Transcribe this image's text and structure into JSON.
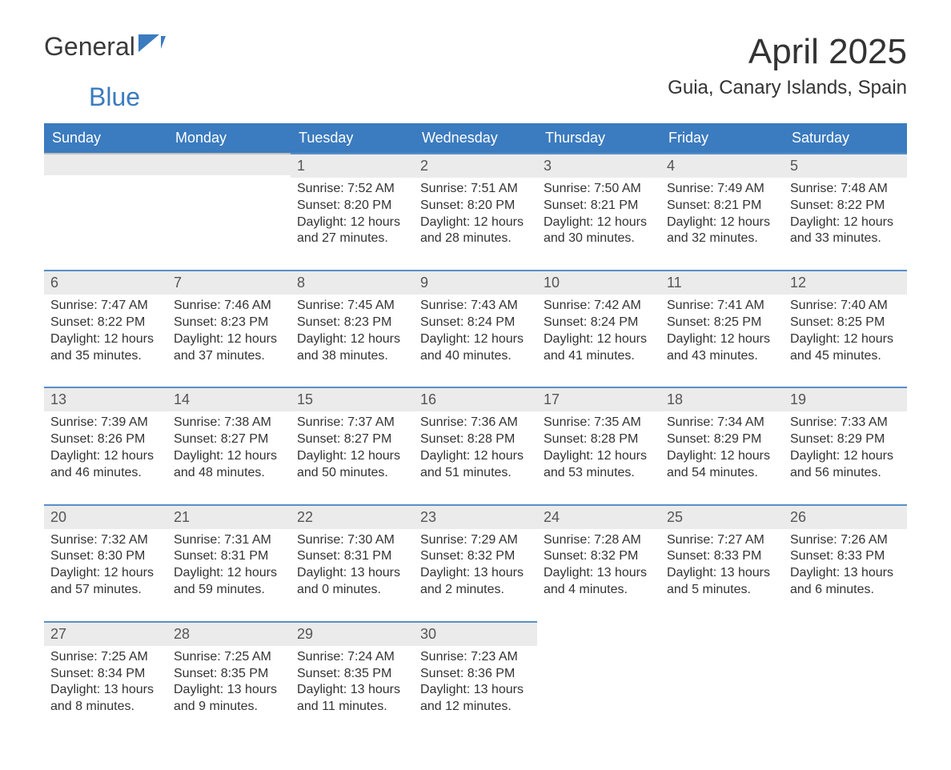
{
  "logo": {
    "general": "General",
    "blue": "Blue"
  },
  "colors": {
    "header_bg": "#3b7bbf",
    "header_text": "#ffffff",
    "daynum_bg": "#ebebeb",
    "daynum_text": "#555555",
    "daynum_border": "#5a8fc7",
    "body_text": "#333333",
    "logo_blue": "#3b7bbf",
    "logo_gray": "#3a3a3a",
    "page_bg": "#ffffff"
  },
  "title": {
    "month": "April 2025",
    "location": "Guia, Canary Islands, Spain"
  },
  "weekdays": [
    "Sunday",
    "Monday",
    "Tuesday",
    "Wednesday",
    "Thursday",
    "Friday",
    "Saturday"
  ],
  "weeks": [
    [
      null,
      null,
      {
        "n": "1",
        "sr": "Sunrise: 7:52 AM",
        "ss": "Sunset: 8:20 PM",
        "d1": "Daylight: 12 hours",
        "d2": "and 27 minutes."
      },
      {
        "n": "2",
        "sr": "Sunrise: 7:51 AM",
        "ss": "Sunset: 8:20 PM",
        "d1": "Daylight: 12 hours",
        "d2": "and 28 minutes."
      },
      {
        "n": "3",
        "sr": "Sunrise: 7:50 AM",
        "ss": "Sunset: 8:21 PM",
        "d1": "Daylight: 12 hours",
        "d2": "and 30 minutes."
      },
      {
        "n": "4",
        "sr": "Sunrise: 7:49 AM",
        "ss": "Sunset: 8:21 PM",
        "d1": "Daylight: 12 hours",
        "d2": "and 32 minutes."
      },
      {
        "n": "5",
        "sr": "Sunrise: 7:48 AM",
        "ss": "Sunset: 8:22 PM",
        "d1": "Daylight: 12 hours",
        "d2": "and 33 minutes."
      }
    ],
    [
      {
        "n": "6",
        "sr": "Sunrise: 7:47 AM",
        "ss": "Sunset: 8:22 PM",
        "d1": "Daylight: 12 hours",
        "d2": "and 35 minutes."
      },
      {
        "n": "7",
        "sr": "Sunrise: 7:46 AM",
        "ss": "Sunset: 8:23 PM",
        "d1": "Daylight: 12 hours",
        "d2": "and 37 minutes."
      },
      {
        "n": "8",
        "sr": "Sunrise: 7:45 AM",
        "ss": "Sunset: 8:23 PM",
        "d1": "Daylight: 12 hours",
        "d2": "and 38 minutes."
      },
      {
        "n": "9",
        "sr": "Sunrise: 7:43 AM",
        "ss": "Sunset: 8:24 PM",
        "d1": "Daylight: 12 hours",
        "d2": "and 40 minutes."
      },
      {
        "n": "10",
        "sr": "Sunrise: 7:42 AM",
        "ss": "Sunset: 8:24 PM",
        "d1": "Daylight: 12 hours",
        "d2": "and 41 minutes."
      },
      {
        "n": "11",
        "sr": "Sunrise: 7:41 AM",
        "ss": "Sunset: 8:25 PM",
        "d1": "Daylight: 12 hours",
        "d2": "and 43 minutes."
      },
      {
        "n": "12",
        "sr": "Sunrise: 7:40 AM",
        "ss": "Sunset: 8:25 PM",
        "d1": "Daylight: 12 hours",
        "d2": "and 45 minutes."
      }
    ],
    [
      {
        "n": "13",
        "sr": "Sunrise: 7:39 AM",
        "ss": "Sunset: 8:26 PM",
        "d1": "Daylight: 12 hours",
        "d2": "and 46 minutes."
      },
      {
        "n": "14",
        "sr": "Sunrise: 7:38 AM",
        "ss": "Sunset: 8:27 PM",
        "d1": "Daylight: 12 hours",
        "d2": "and 48 minutes."
      },
      {
        "n": "15",
        "sr": "Sunrise: 7:37 AM",
        "ss": "Sunset: 8:27 PM",
        "d1": "Daylight: 12 hours",
        "d2": "and 50 minutes."
      },
      {
        "n": "16",
        "sr": "Sunrise: 7:36 AM",
        "ss": "Sunset: 8:28 PM",
        "d1": "Daylight: 12 hours",
        "d2": "and 51 minutes."
      },
      {
        "n": "17",
        "sr": "Sunrise: 7:35 AM",
        "ss": "Sunset: 8:28 PM",
        "d1": "Daylight: 12 hours",
        "d2": "and 53 minutes."
      },
      {
        "n": "18",
        "sr": "Sunrise: 7:34 AM",
        "ss": "Sunset: 8:29 PM",
        "d1": "Daylight: 12 hours",
        "d2": "and 54 minutes."
      },
      {
        "n": "19",
        "sr": "Sunrise: 7:33 AM",
        "ss": "Sunset: 8:29 PM",
        "d1": "Daylight: 12 hours",
        "d2": "and 56 minutes."
      }
    ],
    [
      {
        "n": "20",
        "sr": "Sunrise: 7:32 AM",
        "ss": "Sunset: 8:30 PM",
        "d1": "Daylight: 12 hours",
        "d2": "and 57 minutes."
      },
      {
        "n": "21",
        "sr": "Sunrise: 7:31 AM",
        "ss": "Sunset: 8:31 PM",
        "d1": "Daylight: 12 hours",
        "d2": "and 59 minutes."
      },
      {
        "n": "22",
        "sr": "Sunrise: 7:30 AM",
        "ss": "Sunset: 8:31 PM",
        "d1": "Daylight: 13 hours",
        "d2": "and 0 minutes."
      },
      {
        "n": "23",
        "sr": "Sunrise: 7:29 AM",
        "ss": "Sunset: 8:32 PM",
        "d1": "Daylight: 13 hours",
        "d2": "and 2 minutes."
      },
      {
        "n": "24",
        "sr": "Sunrise: 7:28 AM",
        "ss": "Sunset: 8:32 PM",
        "d1": "Daylight: 13 hours",
        "d2": "and 4 minutes."
      },
      {
        "n": "25",
        "sr": "Sunrise: 7:27 AM",
        "ss": "Sunset: 8:33 PM",
        "d1": "Daylight: 13 hours",
        "d2": "and 5 minutes."
      },
      {
        "n": "26",
        "sr": "Sunrise: 7:26 AM",
        "ss": "Sunset: 8:33 PM",
        "d1": "Daylight: 13 hours",
        "d2": "and 6 minutes."
      }
    ],
    [
      {
        "n": "27",
        "sr": "Sunrise: 7:25 AM",
        "ss": "Sunset: 8:34 PM",
        "d1": "Daylight: 13 hours",
        "d2": "and 8 minutes."
      },
      {
        "n": "28",
        "sr": "Sunrise: 7:25 AM",
        "ss": "Sunset: 8:35 PM",
        "d1": "Daylight: 13 hours",
        "d2": "and 9 minutes."
      },
      {
        "n": "29",
        "sr": "Sunrise: 7:24 AM",
        "ss": "Sunset: 8:35 PM",
        "d1": "Daylight: 13 hours",
        "d2": "and 11 minutes."
      },
      {
        "n": "30",
        "sr": "Sunrise: 7:23 AM",
        "ss": "Sunset: 8:36 PM",
        "d1": "Daylight: 13 hours",
        "d2": "and 12 minutes."
      },
      null,
      null,
      null
    ]
  ]
}
